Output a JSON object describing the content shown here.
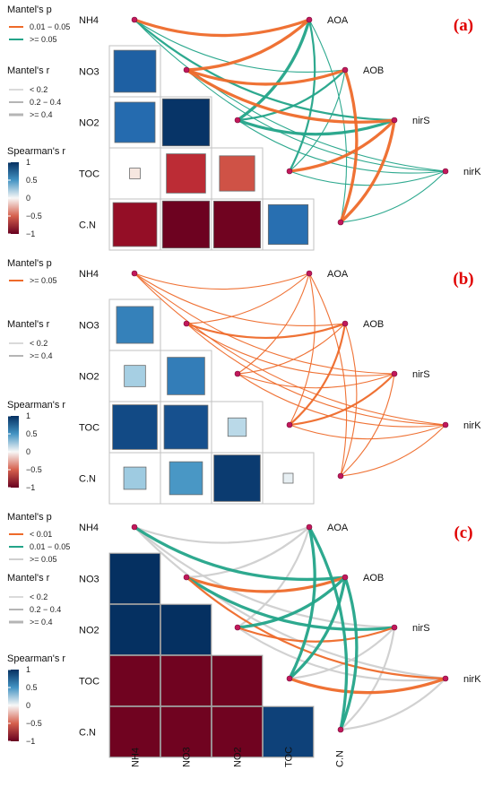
{
  "chart_data": {
    "type": "heatmap",
    "variables": [
      "NH4",
      "NO3",
      "NO2",
      "TOC",
      "C.N"
    ],
    "targets": [
      "AOA",
      "AOB",
      "nirS",
      "nirK"
    ],
    "panels": [
      {
        "tag": "(a)",
        "legend_p_title": "Mantel's p",
        "legend_p": [
          {
            "label": "0.01 − 0.05",
            "color": "#ee6a2a"
          },
          {
            "label": ">= 0.05",
            "color": "#23a489"
          }
        ],
        "legend_r_title": "Mantel's r",
        "legend_r": [
          {
            "label": "< 0.2",
            "width": 1
          },
          {
            "label": "0.2 − 0.4",
            "width": 2
          },
          {
            "label": ">= 0.4",
            "width": 3
          }
        ],
        "spearman_title": "Spearman's r",
        "spearman_ticks": [
          "1",
          "0.5",
          "0",
          "−0.5",
          "−1"
        ],
        "cells": [
          {
            "row": "NO3",
            "col": "NH4",
            "r": 0.78
          },
          {
            "row": "NO2",
            "col": "NH4",
            "r": 0.72
          },
          {
            "row": "NO2",
            "col": "NO3",
            "r": 0.98
          },
          {
            "row": "TOC",
            "col": "NH4",
            "r": -0.05
          },
          {
            "row": "TOC",
            "col": "NO3",
            "r": -0.68
          },
          {
            "row": "TOC",
            "col": "NO2",
            "r": -0.55
          },
          {
            "row": "C.N",
            "col": "NH4",
            "r": -0.85
          },
          {
            "row": "C.N",
            "col": "NO3",
            "r": -0.98
          },
          {
            "row": "C.N",
            "col": "NO2",
            "r": -0.97
          },
          {
            "row": "C.N",
            "col": "TOC",
            "r": 0.7
          }
        ],
        "links": [
          {
            "target": "AOA",
            "var": "NH4",
            "p": "0.01 − 0.05",
            "r": ">= 0.4"
          },
          {
            "target": "AOB",
            "var": "NH4",
            "p": ">= 0.05",
            "r": "< 0.2"
          },
          {
            "target": "nirS",
            "var": "NH4",
            "p": ">= 0.05",
            "r": "0.2 − 0.4"
          },
          {
            "target": "nirK",
            "var": "NH4",
            "p": ">= 0.05",
            "r": "< 0.2"
          },
          {
            "target": "AOA",
            "var": "NO3",
            "p": "0.01 − 0.05",
            "r": ">= 0.4"
          },
          {
            "target": "AOB",
            "var": "NO3",
            "p": "0.01 − 0.05",
            "r": ">= 0.4"
          },
          {
            "target": "nirS",
            "var": "NO3",
            "p": "0.01 − 0.05",
            "r": ">= 0.4"
          },
          {
            "target": "nirK",
            "var": "NO3",
            "p": ">= 0.05",
            "r": "< 0.2"
          },
          {
            "target": "AOA",
            "var": "NO2",
            "p": ">= 0.05",
            "r": ">= 0.4"
          },
          {
            "target": "AOB",
            "var": "NO2",
            "p": ">= 0.05",
            "r": "0.2 − 0.4"
          },
          {
            "target": "nirS",
            "var": "NO2",
            "p": ">= 0.05",
            "r": ">= 0.4"
          },
          {
            "target": "nirK",
            "var": "NO2",
            "p": ">= 0.05",
            "r": "< 0.2"
          },
          {
            "target": "AOA",
            "var": "TOC",
            "p": ">= 0.05",
            "r": "0.2 − 0.4"
          },
          {
            "target": "AOB",
            "var": "TOC",
            "p": ">= 0.05",
            "r": "< 0.2"
          },
          {
            "target": "nirS",
            "var": "TOC",
            "p": "0.01 − 0.05",
            "r": ">= 0.4"
          },
          {
            "target": "nirK",
            "var": "TOC",
            "p": ">= 0.05",
            "r": "< 0.2"
          },
          {
            "target": "AOA",
            "var": "C.N",
            "p": ">= 0.05",
            "r": "< 0.2"
          },
          {
            "target": "AOB",
            "var": "C.N",
            "p": "0.01 − 0.05",
            "r": ">= 0.4"
          },
          {
            "target": "nirS",
            "var": "C.N",
            "p": "0.01 − 0.05",
            "r": ">= 0.4"
          },
          {
            "target": "nirK",
            "var": "C.N",
            "p": ">= 0.05",
            "r": "< 0.2"
          }
        ]
      },
      {
        "tag": "(b)",
        "legend_p_title": "Mantel's p",
        "legend_p": [
          {
            "label": ">= 0.05",
            "color": "#ee6a2a"
          }
        ],
        "legend_r_title": "Mantel's r",
        "legend_r": [
          {
            "label": "< 0.2",
            "width": 1
          },
          {
            "label": ">= 0.4",
            "width": 2
          }
        ],
        "spearman_title": "Spearman's r",
        "spearman_ticks": [
          "1",
          "0.5",
          "0",
          "−0.5",
          "−1"
        ],
        "cells": [
          {
            "row": "NO3",
            "col": "NH4",
            "r": 0.6
          },
          {
            "row": "NO2",
            "col": "NH4",
            "r": 0.2
          },
          {
            "row": "NO2",
            "col": "NO3",
            "r": 0.62
          },
          {
            "row": "TOC",
            "col": "NH4",
            "r": 0.88
          },
          {
            "row": "TOC",
            "col": "NO3",
            "r": 0.85
          },
          {
            "row": "TOC",
            "col": "NO2",
            "r": 0.15
          },
          {
            "row": "C.N",
            "col": "NH4",
            "r": 0.22
          },
          {
            "row": "C.N",
            "col": "NO3",
            "r": 0.48
          },
          {
            "row": "C.N",
            "col": "NO2",
            "r": 0.95
          },
          {
            "row": "C.N",
            "col": "TOC",
            "r": 0.04
          }
        ],
        "links": [
          {
            "target": "AOA",
            "var": "NH4",
            "p": ">= 0.05",
            "r": "< 0.2"
          },
          {
            "target": "AOB",
            "var": "NH4",
            "p": ">= 0.05",
            "r": "< 0.2"
          },
          {
            "target": "nirS",
            "var": "NH4",
            "p": ">= 0.05",
            "r": "< 0.2"
          },
          {
            "target": "nirK",
            "var": "NH4",
            "p": ">= 0.05",
            "r": "< 0.2"
          },
          {
            "target": "AOA",
            "var": "NO3",
            "p": ">= 0.05",
            "r": "< 0.2"
          },
          {
            "target": "AOB",
            "var": "NO3",
            "p": ">= 0.05",
            "r": ">= 0.4"
          },
          {
            "target": "nirS",
            "var": "NO3",
            "p": ">= 0.05",
            "r": "< 0.2"
          },
          {
            "target": "nirK",
            "var": "NO3",
            "p": ">= 0.05",
            "r": "< 0.2"
          },
          {
            "target": "AOA",
            "var": "NO2",
            "p": ">= 0.05",
            "r": "< 0.2"
          },
          {
            "target": "AOB",
            "var": "NO2",
            "p": ">= 0.05",
            "r": "< 0.2"
          },
          {
            "target": "nirS",
            "var": "NO2",
            "p": ">= 0.05",
            "r": "< 0.2"
          },
          {
            "target": "nirK",
            "var": "NO2",
            "p": ">= 0.05",
            "r": "< 0.2"
          },
          {
            "target": "AOA",
            "var": "TOC",
            "p": ">= 0.05",
            "r": "< 0.2"
          },
          {
            "target": "AOB",
            "var": "TOC",
            "p": ">= 0.05",
            "r": ">= 0.4"
          },
          {
            "target": "nirS",
            "var": "TOC",
            "p": ">= 0.05",
            "r": ">= 0.4"
          },
          {
            "target": "nirK",
            "var": "TOC",
            "p": ">= 0.05",
            "r": "< 0.2"
          },
          {
            "target": "AOA",
            "var": "C.N",
            "p": ">= 0.05",
            "r": "< 0.2"
          },
          {
            "target": "AOB",
            "var": "C.N",
            "p": ">= 0.05",
            "r": "< 0.2"
          },
          {
            "target": "nirS",
            "var": "C.N",
            "p": ">= 0.05",
            "r": "< 0.2"
          },
          {
            "target": "nirK",
            "var": "C.N",
            "p": ">= 0.05",
            "r": "< 0.2"
          }
        ]
      },
      {
        "tag": "(c)",
        "legend_p_title": "Mantel's p",
        "legend_p": [
          {
            "label": "< 0.01",
            "color": "#ee6a2a"
          },
          {
            "label": "0.01 − 0.05",
            "color": "#23a489"
          },
          {
            "label": ">= 0.05",
            "color": "#cfcfcf"
          }
        ],
        "legend_r_title": "Mantel's r",
        "legend_r": [
          {
            "label": "< 0.2",
            "width": 1
          },
          {
            "label": "0.2 − 0.4",
            "width": 2
          },
          {
            "label": ">= 0.4",
            "width": 3
          }
        ],
        "spearman_title": "Spearman's r",
        "spearman_ticks": [
          "1",
          "0.5",
          "0",
          "−0.5",
          "−1"
        ],
        "cells": [
          {
            "row": "NO3",
            "col": "NH4",
            "r": 1.0
          },
          {
            "row": "NO2",
            "col": "NH4",
            "r": 1.0
          },
          {
            "row": "NO2",
            "col": "NO3",
            "r": 1.0
          },
          {
            "row": "TOC",
            "col": "NH4",
            "r": -0.97
          },
          {
            "row": "TOC",
            "col": "NO3",
            "r": -0.97
          },
          {
            "row": "TOC",
            "col": "NO2",
            "r": -0.97
          },
          {
            "row": "C.N",
            "col": "NH4",
            "r": -0.97
          },
          {
            "row": "C.N",
            "col": "NO3",
            "r": -0.97
          },
          {
            "row": "C.N",
            "col": "NO2",
            "r": -0.97
          },
          {
            "row": "C.N",
            "col": "TOC",
            "r": 0.92
          }
        ],
        "links": [
          {
            "target": "AOA",
            "var": "NH4",
            "p": ">= 0.05",
            "r": "0.2 − 0.4"
          },
          {
            "target": "AOB",
            "var": "NH4",
            "p": "0.01 − 0.05",
            "r": ">= 0.4"
          },
          {
            "target": "nirS",
            "var": "NH4",
            "p": ">= 0.05",
            "r": "0.2 − 0.4"
          },
          {
            "target": "nirK",
            "var": "NH4",
            "p": ">= 0.05",
            "r": "0.2 − 0.4"
          },
          {
            "target": "AOA",
            "var": "NO3",
            "p": ">= 0.05",
            "r": "0.2 − 0.4"
          },
          {
            "target": "AOB",
            "var": "NO3",
            "p": "< 0.01",
            "r": ">= 0.4"
          },
          {
            "target": "nirS",
            "var": "NO3",
            "p": "0.01 − 0.05",
            "r": ">= 0.4"
          },
          {
            "target": "nirK",
            "var": "NO3",
            "p": "< 0.01",
            "r": "0.2 − 0.4"
          },
          {
            "target": "AOA",
            "var": "NO2",
            "p": ">= 0.05",
            "r": "0.2 − 0.4"
          },
          {
            "target": "AOB",
            "var": "NO2",
            "p": "0.01 − 0.05",
            "r": ">= 0.4"
          },
          {
            "target": "nirS",
            "var": "NO2",
            "p": "< 0.01",
            "r": "0.2 − 0.4"
          },
          {
            "target": "nirK",
            "var": "NO2",
            "p": ">= 0.05",
            "r": "0.2 − 0.4"
          },
          {
            "target": "AOA",
            "var": "TOC",
            "p": "0.01 − 0.05",
            "r": ">= 0.4"
          },
          {
            "target": "AOB",
            "var": "TOC",
            "p": "0.01 − 0.05",
            "r": ">= 0.4"
          },
          {
            "target": "nirS",
            "var": "TOC",
            "p": ">= 0.05",
            "r": "0.2 − 0.4"
          },
          {
            "target": "nirK",
            "var": "TOC",
            "p": "< 0.01",
            "r": ">= 0.4"
          },
          {
            "target": "AOA",
            "var": "C.N",
            "p": "0.01 − 0.05",
            "r": ">= 0.4"
          },
          {
            "target": "AOB",
            "var": "C.N",
            "p": "0.01 − 0.05",
            "r": ">= 0.4"
          },
          {
            "target": "nirS",
            "var": "C.N",
            "p": ">= 0.05",
            "r": "0.2 − 0.4"
          },
          {
            "target": "nirK",
            "var": "C.N",
            "p": ">= 0.05",
            "r": "0.2 − 0.4"
          }
        ]
      }
    ],
    "colors": {
      "pos_strong": "#053061",
      "pos_mid": "#4393c3",
      "neutral": "#f7f7f7",
      "neg_mid": "#f4a582",
      "neg_strong": "#67001f",
      "node": "#c2185b",
      "panel_tag": "#e00000"
    }
  }
}
